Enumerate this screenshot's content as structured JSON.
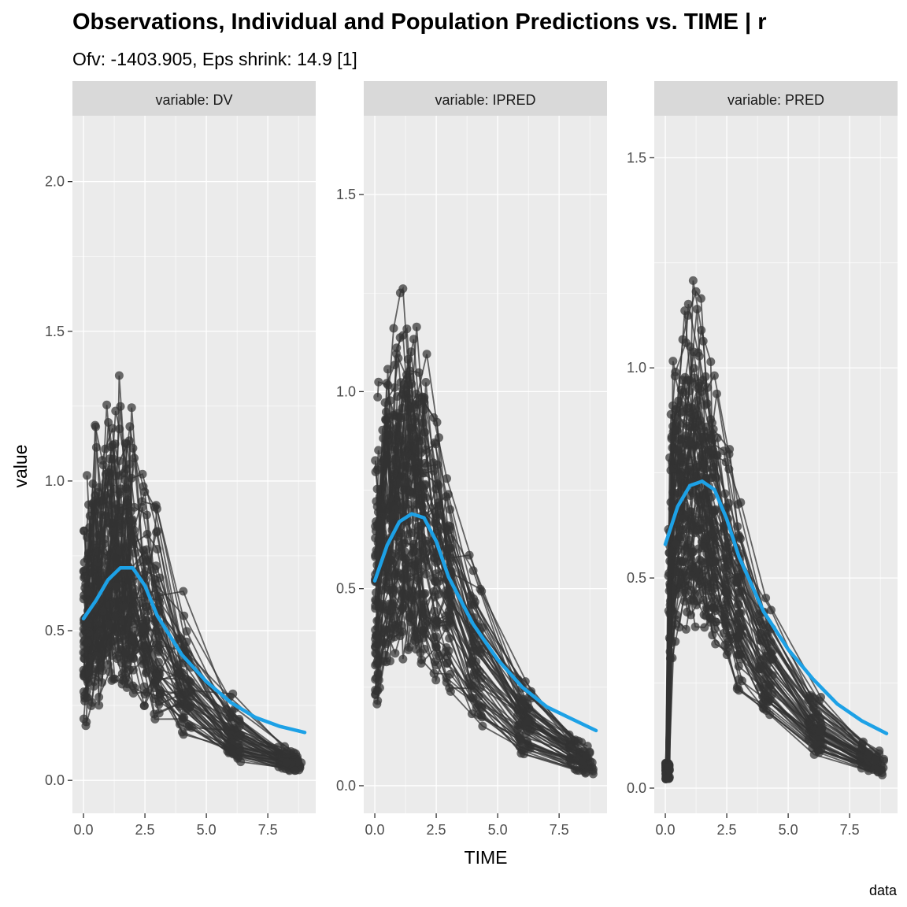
{
  "title": "Observations, Individual and Population Predictions vs. TIME | r",
  "subtitle": "Ofv: -1403.905, Eps shrink: 14.9 [1]",
  "caption": "data",
  "colors": {
    "panel_bg": "#ebebeb",
    "strip_bg": "#d9d9d9",
    "grid": "#ffffff",
    "points_lines": "#333333",
    "smooth": "#1da1e6"
  },
  "chart_data": {
    "type": "line",
    "xlabel": "TIME",
    "ylabel": "value",
    "grid": true,
    "facets": [
      {
        "strip": "variable: DV",
        "xlim": [
          -0.45,
          9.45
        ],
        "ylim": [
          -0.11,
          2.22
        ],
        "x_ticks": [
          0,
          2.5,
          5,
          7.5
        ],
        "x_tick_labels": [
          "0.0",
          "2.5",
          "5.0",
          "7.5"
        ],
        "y_ticks": [
          0,
          0.5,
          1,
          1.5,
          2
        ],
        "y_tick_labels": [
          "0.0",
          "0.5",
          "1.0",
          "1.5",
          "2.0"
        ],
        "peak": 0.72,
        "ka": 1.5,
        "ke": 0.38,
        "seed": 11,
        "noise": 0.32,
        "zero_start": false,
        "smooth": {
          "x": [
            0,
            0.5,
            1,
            1.5,
            2,
            2.5,
            3,
            4,
            5,
            6,
            7,
            8,
            9
          ],
          "y": [
            0.54,
            0.6,
            0.67,
            0.71,
            0.71,
            0.65,
            0.55,
            0.42,
            0.33,
            0.26,
            0.21,
            0.18,
            0.16
          ]
        }
      },
      {
        "strip": "variable: IPRED",
        "xlim": [
          -0.45,
          9.45
        ],
        "ylim": [
          -0.07,
          1.7
        ],
        "x_ticks": [
          0,
          2.5,
          5,
          7.5
        ],
        "x_tick_labels": [
          "0.0",
          "2.5",
          "5.0",
          "7.5"
        ],
        "y_ticks": [
          0,
          0.5,
          1,
          1.5
        ],
        "y_tick_labels": [
          "0.0",
          "0.5",
          "1.0",
          "1.5"
        ],
        "peak": 0.7,
        "ka": 1.6,
        "ke": 0.36,
        "seed": 23,
        "noise": 0.22,
        "zero_start": false,
        "smooth": {
          "x": [
            0,
            0.5,
            1,
            1.5,
            2,
            2.5,
            3,
            4,
            5,
            6,
            7,
            8,
            9
          ],
          "y": [
            0.52,
            0.61,
            0.67,
            0.69,
            0.68,
            0.62,
            0.53,
            0.41,
            0.32,
            0.25,
            0.2,
            0.17,
            0.14
          ]
        }
      },
      {
        "strip": "variable: PRED",
        "xlim": [
          -0.45,
          9.45
        ],
        "ylim": [
          -0.06,
          1.6
        ],
        "x_ticks": [
          0,
          2.5,
          5,
          7.5
        ],
        "x_tick_labels": [
          "0.0",
          "2.5",
          "5.0",
          "7.5"
        ],
        "y_ticks": [
          0,
          0.5,
          1,
          1.5
        ],
        "y_tick_labels": [
          "0.0",
          "0.5",
          "1.0",
          "1.5"
        ],
        "peak": 0.73,
        "ka": 2.0,
        "ke": 0.36,
        "seed": 37,
        "noise": 0.14,
        "zero_start": true,
        "smooth": {
          "x": [
            0,
            0.5,
            1,
            1.5,
            2,
            2.5,
            3,
            4,
            5,
            6,
            7,
            8,
            9
          ],
          "y": [
            0.58,
            0.67,
            0.72,
            0.73,
            0.71,
            0.64,
            0.55,
            0.42,
            0.33,
            0.26,
            0.2,
            0.16,
            0.13
          ]
        }
      }
    ]
  }
}
